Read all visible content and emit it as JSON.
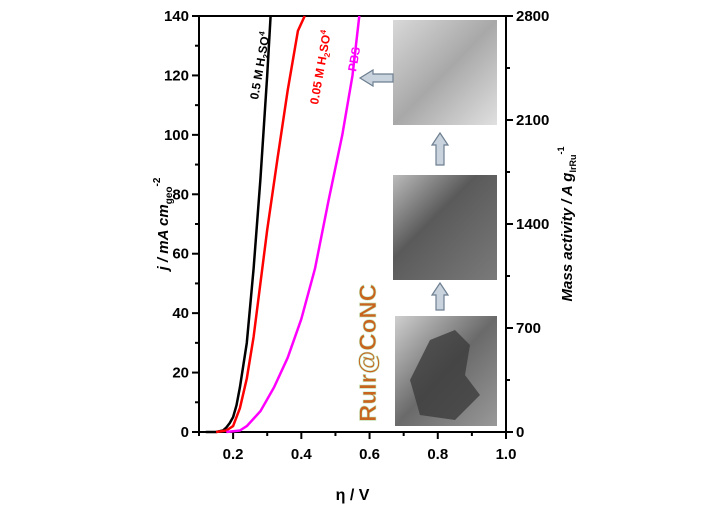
{
  "chart_data": {
    "type": "line",
    "title": "",
    "xlabel": "η / V",
    "ylabel": "j / mA cm",
    "ylabel_sub": "geo",
    "ylabel_sup": "-2",
    "y2label": "Mass activity / A g",
    "y2label_sub": "IrRu",
    "y2label_sup": "-1",
    "xlim": [
      0.1,
      1.0
    ],
    "ylim": [
      0,
      140
    ],
    "y2lim": [
      0,
      2800
    ],
    "xticks": [
      "0.2",
      "0.4",
      "0.6",
      "0.8",
      "1.0"
    ],
    "yticks": [
      "0",
      "20",
      "40",
      "60",
      "80",
      "100",
      "120",
      "140"
    ],
    "y2ticks": [
      "0",
      "700",
      "1400",
      "2100",
      "2800"
    ],
    "grid": false,
    "series": [
      {
        "name": "0.5 M H2SO4",
        "label_main": "0.5 M H",
        "label_sub": "2",
        "label_mid": "SO",
        "label_sub2": "4",
        "color": "#000000",
        "x": [
          0.12,
          0.15,
          0.17,
          0.18,
          0.19,
          0.2,
          0.21,
          0.22,
          0.24,
          0.26,
          0.28,
          0.3,
          0.31
        ],
        "y": [
          0,
          0,
          0.5,
          1.5,
          3,
          5,
          9,
          15,
          30,
          55,
          85,
          120,
          140
        ]
      },
      {
        "name": "0.05 M H2SO4",
        "label_main": "0.05 M H",
        "label_sub": "2",
        "label_mid": "SO",
        "label_sub2": "4",
        "color": "#ff0000",
        "x": [
          0.15,
          0.18,
          0.2,
          0.22,
          0.24,
          0.26,
          0.28,
          0.3,
          0.33,
          0.36,
          0.39,
          0.41
        ],
        "y": [
          0,
          0.5,
          2,
          8,
          18,
          32,
          50,
          68,
          92,
          115,
          135,
          140
        ]
      },
      {
        "name": "PBS",
        "label_main": "PBS",
        "color": "#ff00ff",
        "x": [
          0.18,
          0.22,
          0.24,
          0.28,
          0.32,
          0.36,
          0.4,
          0.44,
          0.48,
          0.52,
          0.55,
          0.57
        ],
        "y": [
          0,
          0.5,
          2,
          7,
          15,
          25,
          38,
          55,
          78,
          100,
          120,
          140
        ]
      }
    ],
    "annotation": "RuIr@CoNC",
    "annotation_color": "#c8641e"
  }
}
